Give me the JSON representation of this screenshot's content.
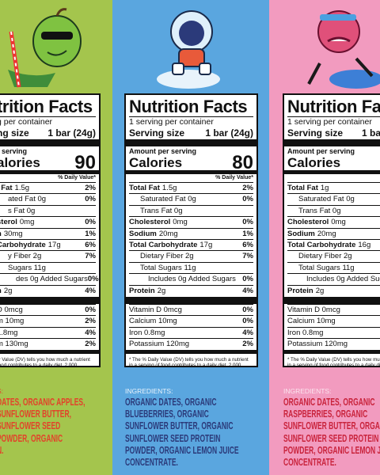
{
  "panels": [
    {
      "title": "trition Facts",
      "servings": "g per container",
      "serving_label": "ng size",
      "serving_size": "1 bar (24g)",
      "amount_label": "r serving",
      "calories_label": "alories",
      "calories": "90",
      "dv_header": "% Daily Value*",
      "nutrients": [
        {
          "name": "l Fat",
          "amount": "1.5g",
          "dv": "2%"
        },
        {
          "amount": "ated Fat 0g",
          "dv": "0%"
        },
        {
          "amount": "s Fat 0g"
        },
        {
          "name": "sterol",
          "amount": "0mg",
          "dv": "0%"
        },
        {
          "name": "n",
          "amount": "30mg",
          "dv": "1%"
        },
        {
          "name": "Carbohydrate",
          "amount": "17g",
          "dv": "6%"
        },
        {
          "amount": "y Fiber 2g",
          "dv": "7%"
        },
        {
          "amount": "Sugars 11g"
        },
        {
          "amount": "des 0g Added Sugars",
          "dv": "0%"
        },
        {
          "name": "n",
          "amount": "2g",
          "dv": "4%"
        }
      ],
      "vitamins": [
        {
          "amount": "D 0mcg",
          "dv": "0%"
        },
        {
          "amount": "m 10mg",
          "dv": "2%"
        },
        {
          "amount": "1.8mg",
          "dv": "4%"
        },
        {
          "amount": "m 130mg",
          "dv": "2%"
        }
      ],
      "footnote": [
        "ly Value (DV) tells you how much a nutrient",
        "food contributes to a daily diet. 2,000",
        "used for general nutrition advice."
      ],
      "ingredients_label": "S:",
      "ingredients": [
        "DATES, ORGANIC APPLES,",
        "SUNFLOWER BUTTER,",
        "SUNFLOWER SEED",
        "POWDER, ORGANIC",
        "N."
      ]
    },
    {
      "title": "Nutrition Facts",
      "servings": "1 serving per container",
      "serving_label": "Serving size",
      "serving_size": "1 bar (24g)",
      "amount_label": "Amount per serving",
      "calories_label": "Calories",
      "calories": "80",
      "dv_header": "% Daily Value*",
      "nutrients": [
        {
          "name": "Total Fat",
          "amount": "1.5g",
          "dv": "2%"
        },
        {
          "amount": "Saturated Fat 0g",
          "dv": "0%"
        },
        {
          "amount": "Trans Fat 0g"
        },
        {
          "name": "Cholesterol",
          "amount": "0mg",
          "dv": "0%"
        },
        {
          "name": "Sodium",
          "amount": "20mg",
          "dv": "1%"
        },
        {
          "name": "Total Carbohydrate",
          "amount": "17g",
          "dv": "6%"
        },
        {
          "amount": "Dietary Fiber 2g",
          "dv": "7%"
        },
        {
          "amount": "Total Sugars 11g"
        },
        {
          "amount": "Includes 0g Added Sugars",
          "dv": "0%"
        },
        {
          "name": "Protein",
          "amount": "2g",
          "dv": "4%"
        }
      ],
      "vitamins": [
        {
          "amount": "Vitamin D 0mcg",
          "dv": "0%"
        },
        {
          "amount": "Calcium 10mg",
          "dv": "0%"
        },
        {
          "amount": "Iron 0.8mg",
          "dv": "4%"
        },
        {
          "amount": "Potassium 120mg",
          "dv": "2%"
        }
      ],
      "footnote": [
        "* The % Daily Value (DV) tells you how much a nutrient",
        "in a serving of food contributes to a daily diet. 2,000",
        "calories a day is used for general nutrition advice."
      ],
      "ingredients_label": "INGREDIENTS:",
      "ingredients": [
        "ORGANIC DATES, ORGANIC",
        "BLUEBERRIES, ORGANIC",
        "SUNFLOWER BUTTER, ORGANIC",
        "SUNFLOWER SEED PROTEIN",
        "POWDER, ORGANIC LEMON JUICE",
        "CONCENTRATE."
      ]
    },
    {
      "title": "Nutrition Fa",
      "servings": "1 serving per container",
      "serving_label": "Serving size",
      "serving_size": "1 ba",
      "amount_label": "Amount per serving",
      "calories_label": "Calories",
      "nutrients": [
        {
          "name": "Total Fat",
          "amount": "1g"
        },
        {
          "amount": "Saturated Fat 0g"
        },
        {
          "amount": "Trans Fat 0g"
        },
        {
          "name": "Cholesterol",
          "amount": "0mg"
        },
        {
          "name": "Sodium",
          "amount": "20mg"
        },
        {
          "name": "Total Carbohydrate",
          "amount": "16g"
        },
        {
          "amount": "Dietary Fiber 2g"
        },
        {
          "amount": "Total Sugars 11g"
        },
        {
          "amount": "Includes 0g Added Sugars"
        },
        {
          "name": "Protein",
          "amount": "2g"
        }
      ],
      "vitamins": [
        {
          "amount": "Vitamin D 0mcg"
        },
        {
          "amount": "Calcium 10mg"
        },
        {
          "amount": "Iron 0.8mg"
        },
        {
          "amount": "Potassium 120mg"
        }
      ],
      "footnote": [
        "* The % Daily Value (DV) tells you how much a",
        "in a serving of food contributes to a daily di",
        "calories a day is used for general nutrition"
      ],
      "ingredients_label": "INGREDIENTS:",
      "ingredients": [
        "ORGANIC DATES, ORGANIC",
        "RASPBERRIES, ORGANIC",
        "SUNFLOWER BUTTER, ORGAN",
        "SUNFLOWER SEED PROTEIN",
        "POWDER, ORGANIC LEMON JU",
        "CONCENTRATE."
      ]
    }
  ]
}
